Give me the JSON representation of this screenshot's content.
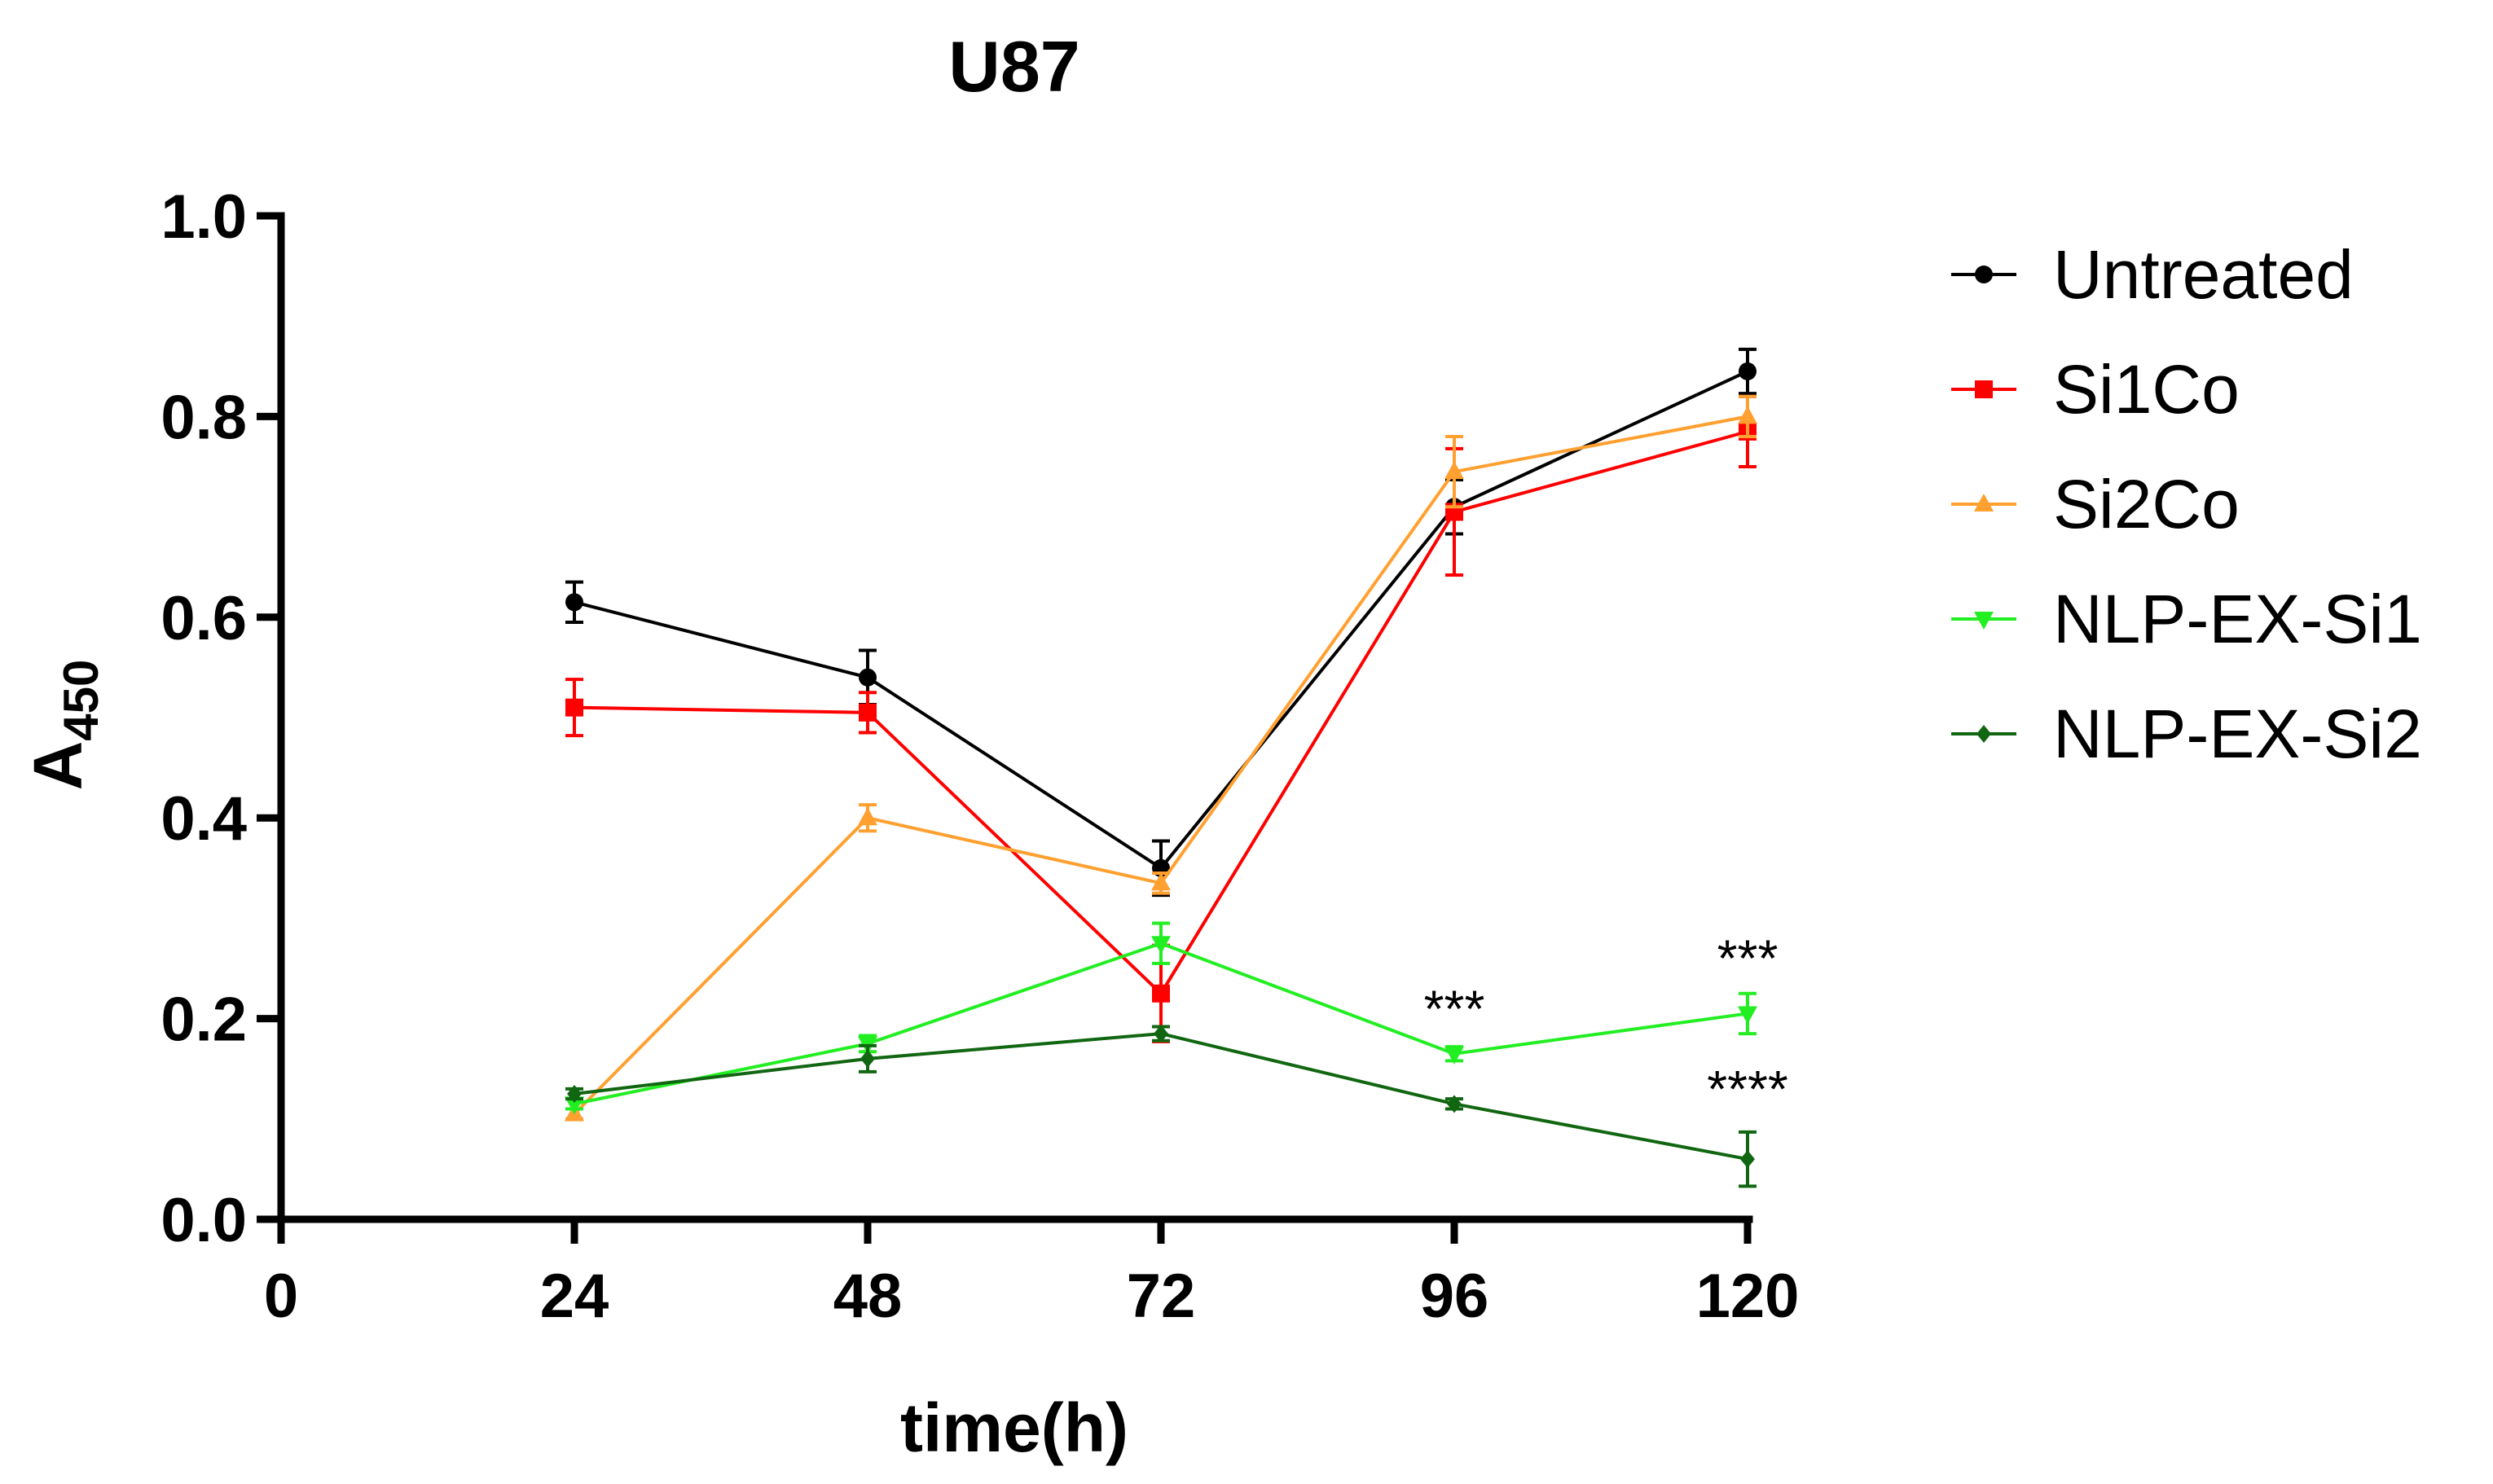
{
  "chart_data": {
    "type": "line",
    "title": "U87",
    "xlabel": "time(h)",
    "ylabel": "A",
    "ylabel_subscript": "450",
    "xlim": [
      0,
      120
    ],
    "ylim": [
      0.0,
      1.0
    ],
    "x_ticks": [
      0,
      24,
      48,
      72,
      96,
      120
    ],
    "x_tick_labels": [
      "0",
      "24",
      "48",
      "72",
      "96",
      "120"
    ],
    "y_ticks": [
      0.0,
      0.2,
      0.4,
      0.6,
      0.8,
      1.0
    ],
    "y_tick_labels": [
      "0.0",
      "0.2",
      "0.4",
      "0.6",
      "0.8",
      "1.0"
    ],
    "grid": false,
    "legend_position": "right",
    "x": [
      24,
      48,
      72,
      96,
      120
    ],
    "series": [
      {
        "name": "Untreated",
        "color": "#000000",
        "marker": "circle",
        "values": [
          0.615,
          0.54,
          0.35,
          0.71,
          0.845
        ],
        "errors": [
          0.02,
          0.027,
          0.027,
          0.027,
          0.022
        ]
      },
      {
        "name": "Si1Co",
        "color": "#FF0000",
        "marker": "square",
        "values": [
          0.51,
          0.505,
          0.225,
          0.705,
          0.785
        ],
        "errors": [
          0.028,
          0.02,
          0.048,
          0.063,
          0.035
        ]
      },
      {
        "name": "Si2Co",
        "color": "#FFA030",
        "marker": "triangle-up",
        "values": [
          0.105,
          0.4,
          0.335,
          0.745,
          0.8
        ],
        "errors": [
          0.005,
          0.013,
          0.01,
          0.035,
          0.02
        ]
      },
      {
        "name": "NLP-EX-Si1",
        "color": "#22EE22",
        "marker": "triangle-down",
        "values": [
          0.115,
          0.175,
          0.275,
          0.165,
          0.205
        ],
        "errors": [
          0.005,
          0.008,
          0.02,
          0.007,
          0.02
        ]
      },
      {
        "name": "NLP-EX-Si2",
        "color": "#116611",
        "marker": "diamond",
        "values": [
          0.125,
          0.16,
          0.185,
          0.115,
          0.06
        ],
        "errors": [
          0.005,
          0.013,
          0.007,
          0.005,
          0.027
        ]
      }
    ],
    "annotations": [
      {
        "text": "***",
        "x": 96,
        "y": 0.21
      },
      {
        "text": "***",
        "x": 120,
        "y": 0.26
      },
      {
        "text": "****",
        "x": 120,
        "y": 0.13
      }
    ]
  }
}
